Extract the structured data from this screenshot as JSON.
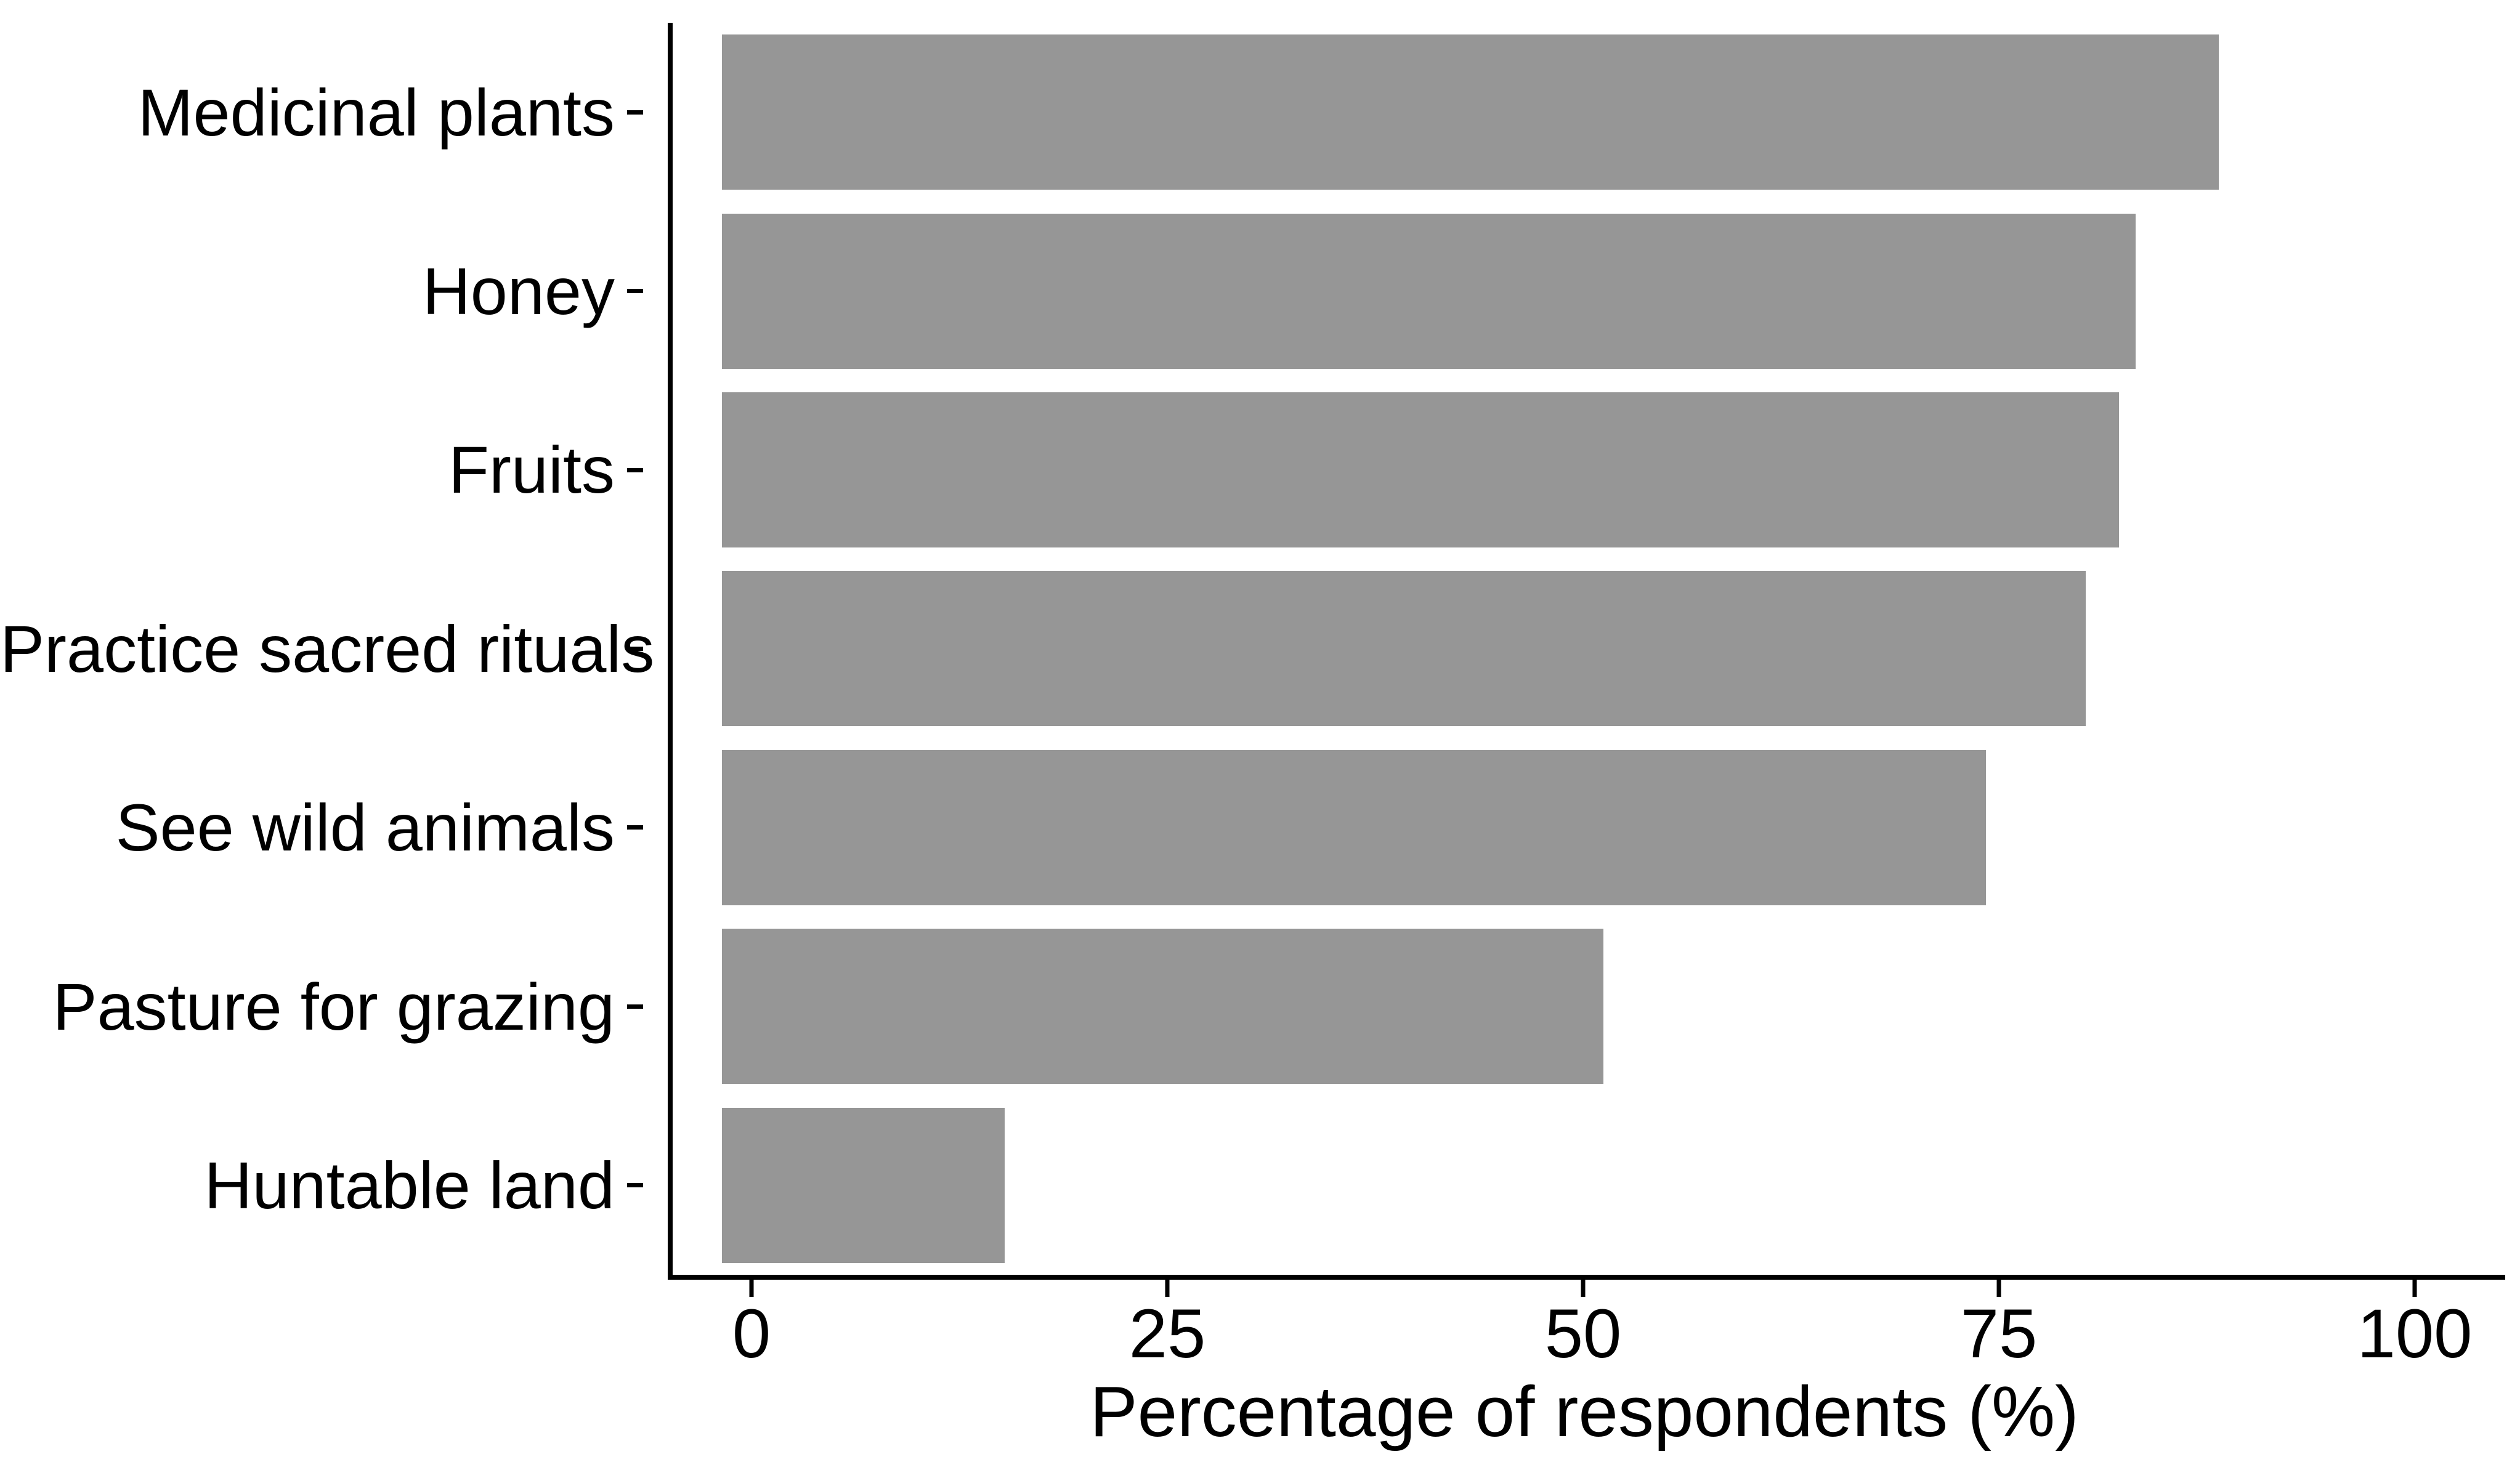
{
  "figure": {
    "description": "Horizontal bar chart of forest/land uses by percentage of respondents",
    "background_color": "#ffffff"
  },
  "chart_data": {
    "type": "bar",
    "orientation": "horizontal",
    "categories": [
      "Medicinal plants",
      "Honey",
      "Fruits",
      "Practice sacred rituals",
      "See wild animals",
      "Pasture for grazing",
      "Huntable land"
    ],
    "values": [
      90,
      85,
      84,
      82,
      76,
      53,
      17
    ],
    "title": "",
    "xlabel": "Percentage of respondents (%)",
    "ylabel": "",
    "xlim": [
      0,
      100
    ],
    "x_ticks": [
      0,
      25,
      50,
      75,
      100
    ],
    "bar_color": "#969696",
    "axis_color": "#000000",
    "text_color": "#000000",
    "grid": "off",
    "legend": "none"
  }
}
